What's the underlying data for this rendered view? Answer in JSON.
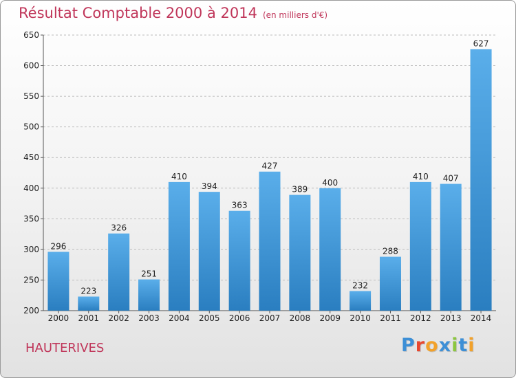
{
  "title": "Résultat Comptable 2000 à 2014",
  "subtitle": "(en milliers d'€)",
  "place": "HAUTERIVES",
  "logo": {
    "letters": [
      "P",
      "r",
      "o",
      "x",
      "i",
      "t",
      "i"
    ],
    "colors": [
      "#3d8fd6",
      "#e8472e",
      "#f2a12a",
      "#3d8fd6",
      "#8cc63f",
      "#3d8fd6",
      "#f2a12a"
    ]
  },
  "colors": {
    "bar_top": "#5aaeea",
    "bar_bottom": "#2a7ec0",
    "accent": "#c0365a",
    "grid": "#bcbcbc",
    "axis": "#555555"
  },
  "chart_data": {
    "type": "bar",
    "title": "Résultat Comptable 2000 à 2014",
    "xlabel": "",
    "ylabel": "",
    "categories": [
      "2000",
      "2001",
      "2002",
      "2003",
      "2004",
      "2005",
      "2006",
      "2007",
      "2008",
      "2009",
      "2010",
      "2011",
      "2012",
      "2013",
      "2014"
    ],
    "values": [
      296,
      223,
      326,
      251,
      410,
      394,
      363,
      427,
      389,
      400,
      232,
      288,
      410,
      407,
      627
    ],
    "ylim": [
      200,
      650
    ],
    "yticks": [
      200,
      250,
      300,
      350,
      400,
      450,
      500,
      550,
      600,
      650
    ],
    "grid": true
  }
}
